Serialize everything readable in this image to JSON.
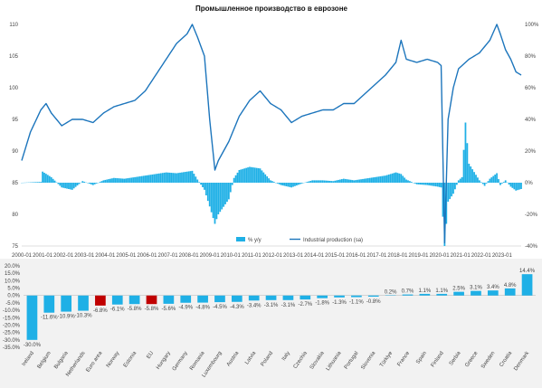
{
  "colors": {
    "bar": "#1fb0e6",
    "line": "#1c75bc",
    "highlight": "#c00000",
    "axis": "#bfbfbf"
  },
  "chart_data": [
    {
      "type": "line",
      "title": "Промышленное производство в еврозоне",
      "x_ticks": [
        "2000-01",
        "2001-01",
        "2002-01",
        "2003-01",
        "2004-01",
        "2005-01",
        "2006-01",
        "2007-01",
        "2008-01",
        "2009-01",
        "2010-01",
        "2011-01",
        "2012-01",
        "2013-01",
        "2014-01",
        "2015-01",
        "2016-01",
        "2017-01",
        "2018-01",
        "2019-01",
        "2020-01",
        "2021-01",
        "2022-01",
        "2023-01"
      ],
      "x_range": [
        "2000-01",
        "2023-12"
      ],
      "y_left_ticks": [
        "75",
        "80",
        "85",
        "90",
        "95",
        "100",
        "105",
        "110"
      ],
      "y_left_range": [
        75,
        110
      ],
      "y_right_ticks": [
        "-40%",
        "-20%",
        "0%",
        "20%",
        "40%",
        "60%",
        "80%",
        "100%"
      ],
      "y_right_range": [
        -40,
        100
      ],
      "legend": {
        "position": "bottom",
        "items": [
          "% y/y",
          "Industrial production (sa)"
        ]
      },
      "series": [
        {
          "name": "Industrial production (sa)",
          "axis": "left",
          "kind": "line",
          "points": [
            [
              "2000-01",
              88.5
            ],
            [
              "2000-06",
              93.0
            ],
            [
              "2000-12",
              96.5
            ],
            [
              "2001-03",
              97.5
            ],
            [
              "2001-06",
              96.0
            ],
            [
              "2001-12",
              94.0
            ],
            [
              "2002-06",
              95.0
            ],
            [
              "2002-12",
              95.0
            ],
            [
              "2003-06",
              94.5
            ],
            [
              "2003-12",
              96.0
            ],
            [
              "2004-06",
              97.0
            ],
            [
              "2004-12",
              97.5
            ],
            [
              "2005-06",
              98.0
            ],
            [
              "2005-12",
              99.5
            ],
            [
              "2006-06",
              102.0
            ],
            [
              "2006-12",
              104.5
            ],
            [
              "2007-06",
              107.0
            ],
            [
              "2007-12",
              108.5
            ],
            [
              "2008-03",
              110.0
            ],
            [
              "2008-06",
              108.0
            ],
            [
              "2008-10",
              105.0
            ],
            [
              "2009-01",
              95.0
            ],
            [
              "2009-04",
              87.0
            ],
            [
              "2009-06",
              88.5
            ],
            [
              "2009-12",
              91.5
            ],
            [
              "2010-06",
              95.5
            ],
            [
              "2010-12",
              98.0
            ],
            [
              "2011-06",
              99.5
            ],
            [
              "2011-12",
              97.5
            ],
            [
              "2012-06",
              96.5
            ],
            [
              "2012-12",
              94.5
            ],
            [
              "2013-06",
              95.5
            ],
            [
              "2013-12",
              96.0
            ],
            [
              "2014-06",
              96.5
            ],
            [
              "2014-12",
              96.5
            ],
            [
              "2015-06",
              97.5
            ],
            [
              "2015-12",
              97.5
            ],
            [
              "2016-06",
              99.0
            ],
            [
              "2016-12",
              100.5
            ],
            [
              "2017-06",
              102.0
            ],
            [
              "2017-12",
              104.0
            ],
            [
              "2018-03",
              107.5
            ],
            [
              "2018-06",
              104.5
            ],
            [
              "2018-12",
              104.0
            ],
            [
              "2019-06",
              104.5
            ],
            [
              "2019-12",
              104.0
            ],
            [
              "2020-02",
              103.5
            ],
            [
              "2020-04",
              75.5
            ],
            [
              "2020-06",
              95.0
            ],
            [
              "2020-09",
              100.0
            ],
            [
              "2020-12",
              103.0
            ],
            [
              "2021-06",
              104.5
            ],
            [
              "2021-12",
              105.5
            ],
            [
              "2022-06",
              107.5
            ],
            [
              "2022-10",
              110.0
            ],
            [
              "2022-12",
              108.5
            ],
            [
              "2023-03",
              106.0
            ],
            [
              "2023-06",
              104.5
            ],
            [
              "2023-09",
              102.5
            ],
            [
              "2023-12",
              102.0
            ]
          ]
        },
        {
          "name": "% y/y",
          "axis": "right",
          "kind": "bar",
          "points": [
            [
              "2000-01",
              0
            ],
            [
              "2000-12",
              0.5
            ],
            [
              "2001-01",
              7.0
            ],
            [
              "2001-06",
              3.5
            ],
            [
              "2001-12",
              -3.0
            ],
            [
              "2002-06",
              -4.5
            ],
            [
              "2002-12",
              1.0
            ],
            [
              "2003-06",
              -1.5
            ],
            [
              "2003-12",
              1.5
            ],
            [
              "2004-06",
              3.0
            ],
            [
              "2004-12",
              2.5
            ],
            [
              "2005-06",
              3.5
            ],
            [
              "2005-12",
              4.5
            ],
            [
              "2006-06",
              5.5
            ],
            [
              "2006-12",
              6.5
            ],
            [
              "2007-06",
              6.0
            ],
            [
              "2007-12",
              7.0
            ],
            [
              "2008-03",
              7.5
            ],
            [
              "2008-06",
              2.0
            ],
            [
              "2008-10",
              -4.5
            ],
            [
              "2009-01",
              -15.0
            ],
            [
              "2009-04",
              -26.0
            ],
            [
              "2009-06",
              -20.0
            ],
            [
              "2009-12",
              -10.5
            ],
            [
              "2010-03",
              3.0
            ],
            [
              "2010-06",
              8.0
            ],
            [
              "2010-12",
              10.0
            ],
            [
              "2011-06",
              9.0
            ],
            [
              "2011-12",
              1.5
            ],
            [
              "2012-06",
              -1.5
            ],
            [
              "2012-12",
              -3.0
            ],
            [
              "2013-06",
              -0.5
            ],
            [
              "2013-12",
              1.5
            ],
            [
              "2014-06",
              1.5
            ],
            [
              "2014-12",
              1.0
            ],
            [
              "2015-06",
              2.5
            ],
            [
              "2015-12",
              1.5
            ],
            [
              "2016-06",
              2.5
            ],
            [
              "2016-12",
              3.5
            ],
            [
              "2017-06",
              4.5
            ],
            [
              "2017-12",
              6.5
            ],
            [
              "2018-03",
              5.5
            ],
            [
              "2018-06",
              2.0
            ],
            [
              "2018-12",
              -1.0
            ],
            [
              "2019-06",
              -1.5
            ],
            [
              "2019-12",
              -2.5
            ],
            [
              "2020-02",
              -3.0
            ],
            [
              "2020-04",
              -40.0
            ],
            [
              "2020-06",
              -12.0
            ],
            [
              "2020-09",
              -7.0
            ],
            [
              "2020-12",
              1.5
            ],
            [
              "2021-02",
              3.5
            ],
            [
              "2021-04",
              38.0
            ],
            [
              "2021-06",
              12.0
            ],
            [
              "2021-12",
              1.5
            ],
            [
              "2022-03",
              -2.0
            ],
            [
              "2022-06",
              2.5
            ],
            [
              "2022-10",
              6.0
            ],
            [
              "2022-12",
              -1.5
            ],
            [
              "2023-03",
              1.5
            ],
            [
              "2023-06",
              -2.5
            ],
            [
              "2023-09",
              -5.0
            ],
            [
              "2023-12",
              -4.0
            ]
          ]
        }
      ]
    },
    {
      "type": "bar",
      "categories": [
        "Ireland",
        "Belgium",
        "Bulgaria",
        "Netherlands",
        "Euro area",
        "Norway",
        "Estonia",
        "EU",
        "Hungary",
        "Germany",
        "Romania",
        "Luxembourg",
        "Austria",
        "Latvia",
        "Poland",
        "Italy",
        "Czechia",
        "Slovakia",
        "Lithuania",
        "Portugal",
        "Slovenia",
        "Türkiye",
        "France",
        "Spain",
        "Finland",
        "Serbia",
        "Greece",
        "Sweden",
        "Croatia",
        "Denmark"
      ],
      "values": [
        -30.0,
        -11.6,
        -10.9,
        -10.3,
        -6.8,
        -6.1,
        -5.8,
        -5.8,
        -5.6,
        -4.9,
        -4.8,
        -4.5,
        -4.3,
        -3.4,
        -3.1,
        -3.1,
        -2.7,
        -1.8,
        -1.3,
        -1.1,
        -0.8,
        0.2,
        0.7,
        1.1,
        1.1,
        2.5,
        3.1,
        3.4,
        4.8,
        14.4
      ],
      "data_labels": [
        "-30.0%",
        "-11.6%",
        "-10.9%",
        "-10.3%",
        "-6.8%",
        "-6.1%",
        "-5.8%",
        "-5.8%",
        "-5.6%",
        "-4.9%",
        "-4.8%",
        "-4.5%",
        "-4.3%",
        "-3.4%",
        "-3.1%",
        "-3.1%",
        "-2.7%",
        "-1.8%",
        "-1.3%",
        "-1.1%",
        "-0.8%",
        "0.2%",
        "0.7%",
        "1.1%",
        "1.1%",
        "2.5%",
        "3.1%",
        "3.4%",
        "4.8%",
        "14.4%"
      ],
      "highlighted": [
        "Euro area",
        "EU"
      ],
      "y_ticks": [
        "20.0%",
        "15.0%",
        "10.0%",
        "5.0%",
        "0.0%",
        "-5.0%",
        "-10.0%",
        "-15.0%",
        "-20.0%",
        "-25.0%",
        "-30.0%",
        "-35.0%"
      ],
      "ylim": [
        -35,
        20
      ]
    }
  ]
}
